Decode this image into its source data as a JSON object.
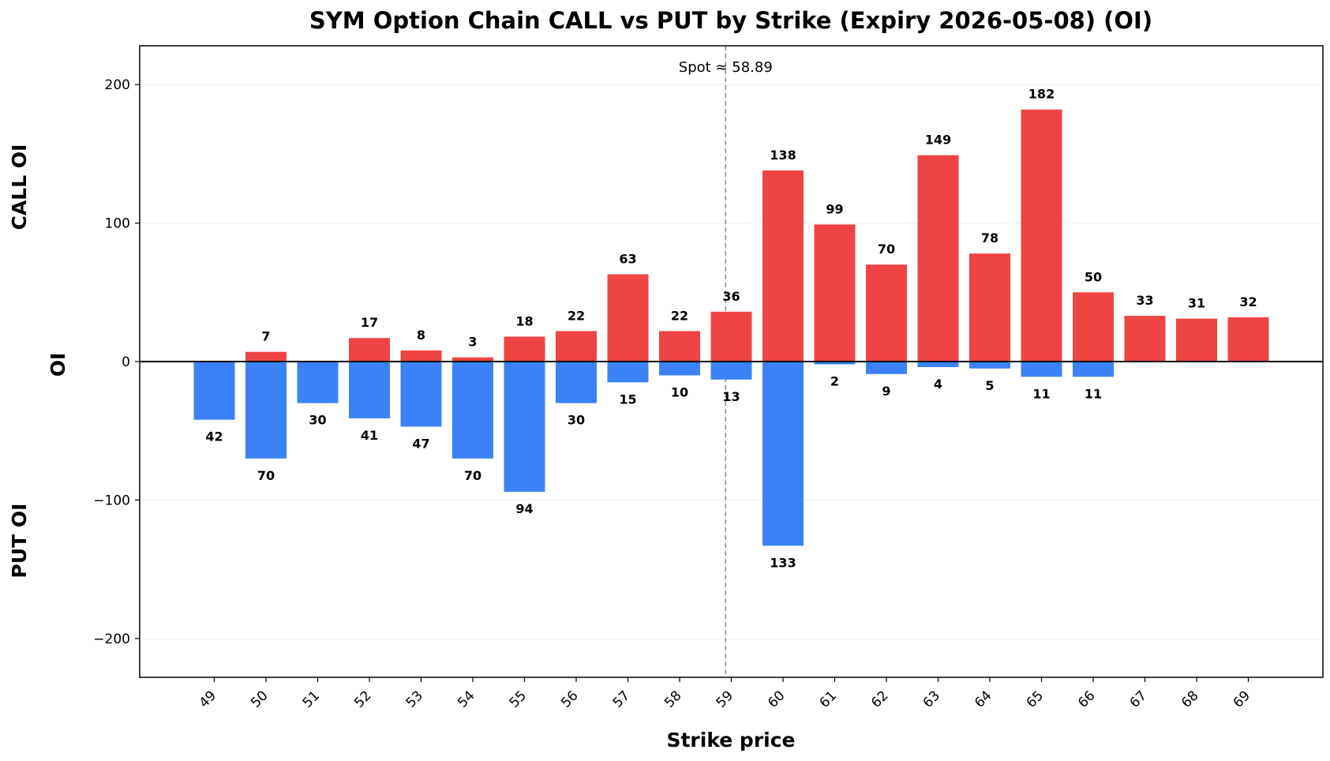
{
  "chart_data": {
    "type": "bar",
    "title": "SYM Option Chain CALL vs PUT by Strike (Expiry 2026-05-08) (OI)",
    "xlabel": "Strike price",
    "ylabel": "OI",
    "ylabel_top": "CALL OI",
    "ylabel_bottom": "PUT OI",
    "categories": [
      "49",
      "50",
      "51",
      "52",
      "53",
      "54",
      "55",
      "56",
      "57",
      "58",
      "59",
      "60",
      "61",
      "62",
      "63",
      "64",
      "65",
      "66",
      "67",
      "68",
      "69"
    ],
    "series": [
      {
        "name": "CALL",
        "color": "#ef4444",
        "values": [
          0,
          7,
          0,
          17,
          8,
          3,
          18,
          22,
          63,
          22,
          36,
          138,
          99,
          70,
          149,
          78,
          182,
          50,
          33,
          31,
          32
        ]
      },
      {
        "name": "PUT",
        "color": "#3b82f6",
        "values": [
          42,
          70,
          30,
          41,
          47,
          70,
          94,
          30,
          15,
          10,
          13,
          133,
          2,
          9,
          4,
          5,
          11,
          11,
          0,
          0,
          0
        ]
      }
    ],
    "ylim": [
      -228,
      228
    ],
    "yticks": [
      -200,
      -100,
      0,
      100,
      200
    ],
    "ytick_labels": [
      "−200",
      "−100",
      "0",
      "100",
      "200"
    ],
    "grid": true,
    "spot": {
      "value": 58.89,
      "label": "Spot ≈ 58.89"
    }
  }
}
